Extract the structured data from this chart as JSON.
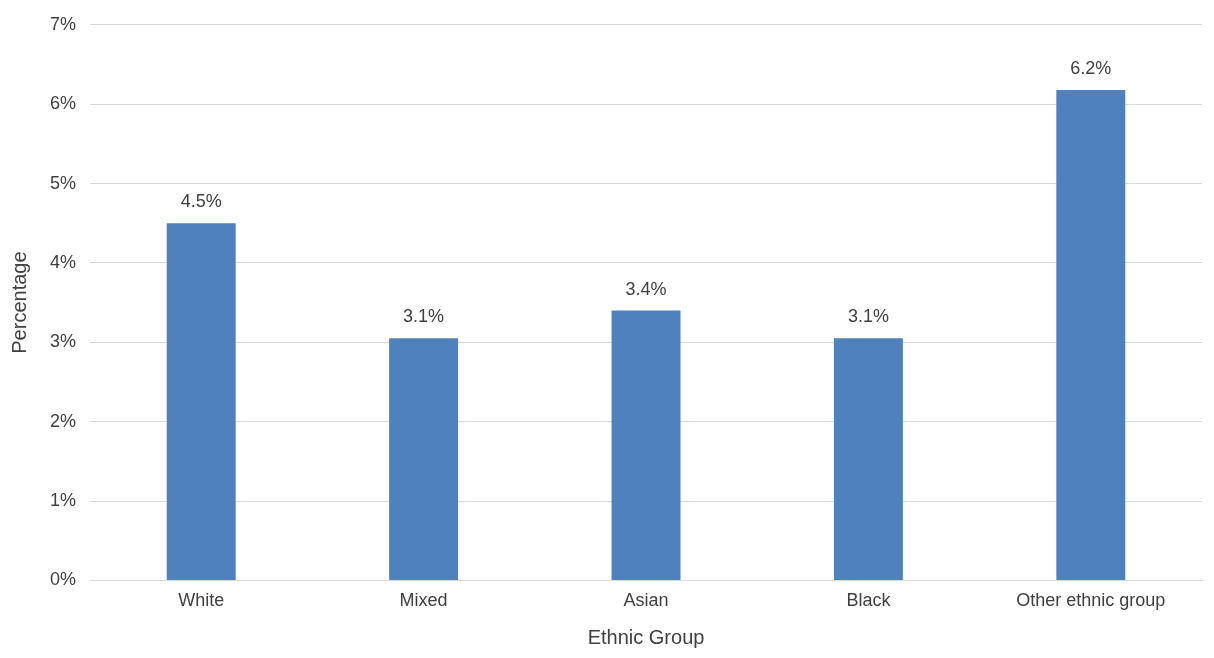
{
  "chart_data": {
    "type": "bar",
    "xlabel": "Ethnic Group",
    "ylabel": "Percentage",
    "categories": [
      "White",
      "Mixed",
      "Asian",
      "Black",
      "Other ethnic group"
    ],
    "values": [
      4.5,
      3.05,
      3.4,
      3.05,
      6.18
    ],
    "value_labels": [
      "4.5%",
      "3.1%",
      "3.4%",
      "3.1%",
      "6.2%"
    ],
    "color": "#4f81bd",
    "ylim": [
      0,
      7
    ],
    "yticks": [
      {
        "value": 0,
        "label": "0%"
      },
      {
        "value": 1,
        "label": "1%"
      },
      {
        "value": 2,
        "label": "2%"
      },
      {
        "value": 3,
        "label": "3%"
      },
      {
        "value": 4,
        "label": "4%"
      },
      {
        "value": 5,
        "label": "5%"
      },
      {
        "value": 6,
        "label": "6%"
      },
      {
        "value": 7,
        "label": "7%"
      }
    ],
    "grid": "y"
  }
}
